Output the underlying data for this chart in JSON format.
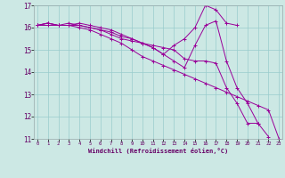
{
  "xlabel": "Windchill (Refroidissement éolien,°C)",
  "bg_color": "#cce8e4",
  "line_color": "#990099",
  "grid_color": "#99cccc",
  "xmin": 0,
  "xmax": 23,
  "ymin": 11,
  "ymax": 17,
  "series": [
    {
      "x": [
        0,
        1,
        2,
        3,
        4,
        5,
        6,
        7,
        8,
        9,
        10,
        11,
        12,
        13,
        14,
        15,
        16,
        17,
        18,
        19,
        20,
        21
      ],
      "y": [
        16.1,
        16.2,
        16.1,
        16.1,
        16.1,
        16.0,
        15.9,
        15.7,
        15.5,
        15.4,
        15.3,
        15.2,
        15.1,
        15.0,
        14.6,
        14.5,
        14.5,
        14.4,
        13.3,
        12.6,
        11.7,
        11.7
      ]
    },
    {
      "x": [
        0,
        1,
        2,
        3,
        4,
        5,
        6,
        7,
        8,
        9,
        10,
        11,
        12,
        13,
        14,
        15,
        16,
        17,
        18,
        19
      ],
      "y": [
        16.1,
        16.2,
        16.1,
        16.2,
        16.1,
        16.0,
        15.9,
        15.8,
        15.6,
        15.5,
        15.3,
        15.1,
        14.8,
        15.2,
        15.5,
        16.0,
        17.0,
        16.8,
        16.2,
        16.1
      ]
    },
    {
      "x": [
        0,
        1,
        2,
        3,
        4,
        5,
        6,
        7,
        8,
        9,
        10,
        11,
        12,
        13,
        14,
        15,
        16,
        17,
        18,
        19,
        20,
        21,
        22
      ],
      "y": [
        16.1,
        16.2,
        16.1,
        16.1,
        16.2,
        16.1,
        16.0,
        15.9,
        15.7,
        15.5,
        15.3,
        15.1,
        14.8,
        14.5,
        14.2,
        15.2,
        16.1,
        16.3,
        14.5,
        13.3,
        12.6,
        11.7,
        11.1
      ]
    },
    {
      "x": [
        0,
        1,
        2,
        3,
        4,
        5,
        6,
        7,
        8,
        9,
        10,
        11,
        12,
        13,
        14,
        15,
        16,
        17,
        18,
        19,
        20,
        21,
        22,
        23
      ],
      "y": [
        16.1,
        16.1,
        16.1,
        16.1,
        16.0,
        15.9,
        15.7,
        15.5,
        15.3,
        15.0,
        14.7,
        14.5,
        14.3,
        14.1,
        13.9,
        13.7,
        13.5,
        13.3,
        13.1,
        12.9,
        12.7,
        12.5,
        12.3,
        11.0
      ]
    }
  ]
}
